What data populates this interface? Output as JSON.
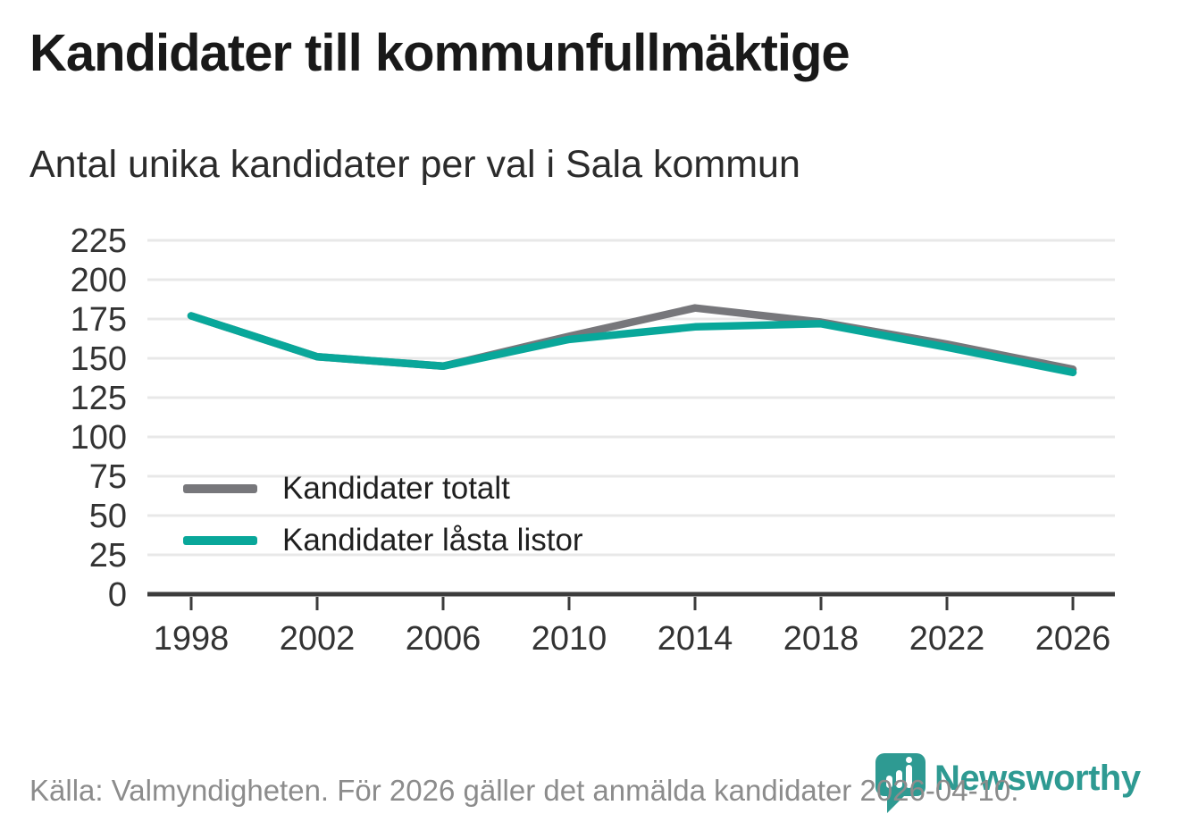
{
  "title": "Kandidater till kommunfullmäktige",
  "subtitle": "Antal unika kandidater per val i Sala kommun",
  "source_note": "Källa: Valmyndigheten. För 2026 gäller det anmälda kandidater 2026-04-10.",
  "brand": {
    "name": "Newsworthy",
    "icon": "bar-chart-pin-icon",
    "color": "#2e9a92"
  },
  "colors": {
    "total_line": "#77777b",
    "locked_line": "#09a79a",
    "grid": "#e8e8e8",
    "axis": "#3c3c3c",
    "tick_label": "#333333",
    "legend_label": "#1f1f1f",
    "footer_text": "#8c8c8c",
    "title_text": "#191919"
  },
  "chart_data": {
    "type": "line",
    "title": "Kandidater till kommunfullmäktige",
    "subtitle": "Antal unika kandidater per val i Sala kommun",
    "x": [
      "1998",
      "2002",
      "2006",
      "2010",
      "2014",
      "2018",
      "2022",
      "2026"
    ],
    "series": [
      {
        "name": "Kandidater totalt",
        "color": "#77777b",
        "values": [
          177,
          151,
          145,
          164,
          182,
          173,
          159,
          143
        ]
      },
      {
        "name": "Kandidater låsta listor",
        "color": "#09a79a",
        "values": [
          177,
          151,
          145,
          162,
          170,
          172,
          157,
          141
        ]
      }
    ],
    "xlabel": "",
    "ylabel": "",
    "ylim": [
      0,
      225
    ],
    "yticks": [
      0,
      25,
      50,
      75,
      100,
      125,
      150,
      175,
      200,
      225
    ],
    "grid": true,
    "legend_position": "inside bottom-left"
  }
}
